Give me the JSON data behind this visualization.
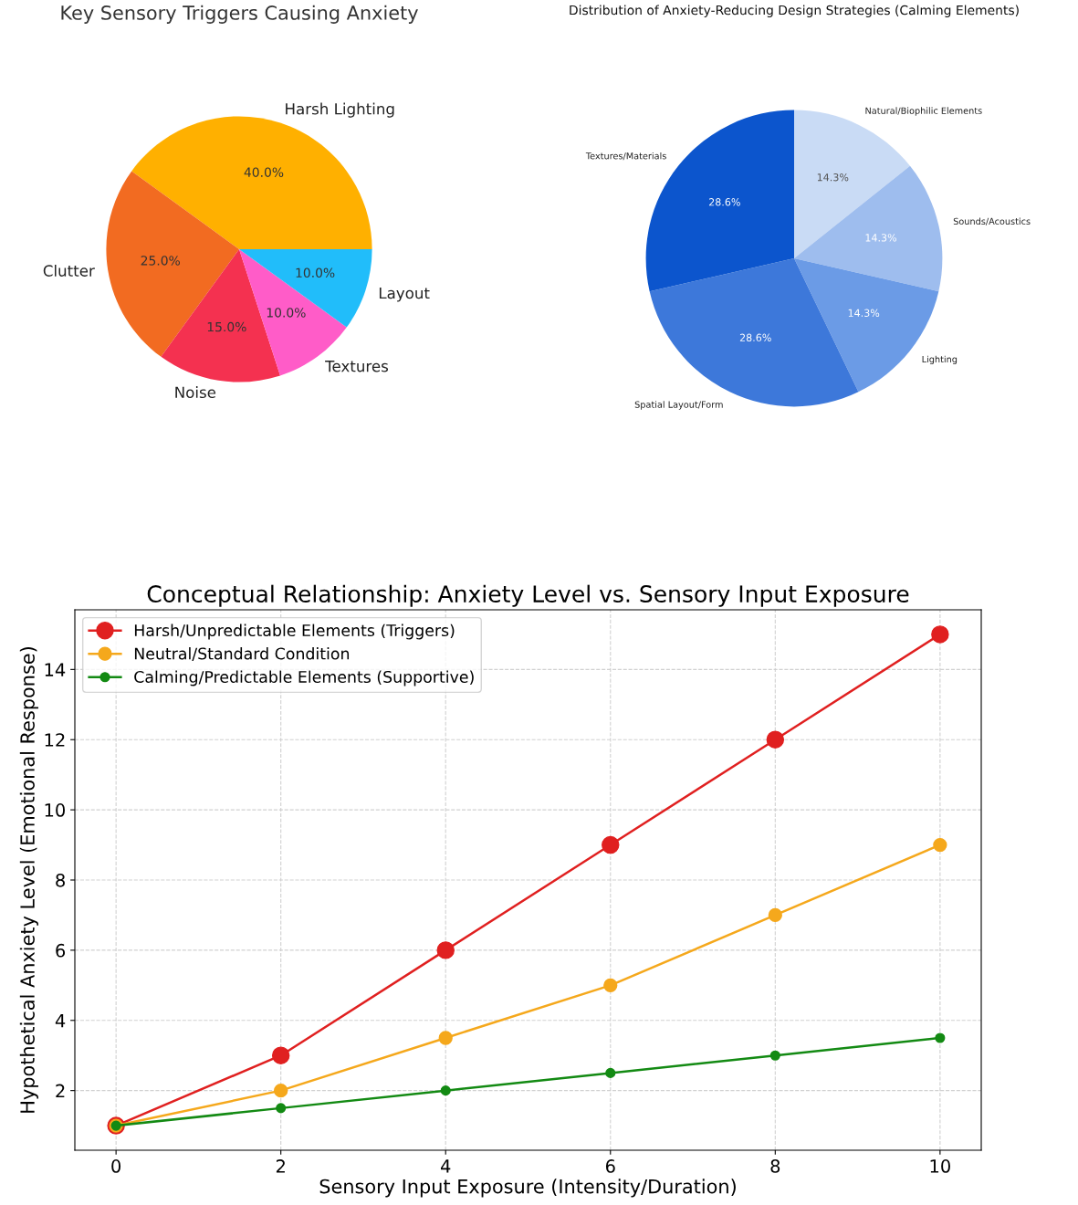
{
  "chart_data": [
    {
      "type": "pie",
      "title": "Key Sensory Triggers Causing Anxiety",
      "categories": [
        "Harsh Lighting",
        "Clutter",
        "Noise",
        "Textures",
        "Layout"
      ],
      "values": [
        40.0,
        25.0,
        15.0,
        10.0,
        10.0
      ],
      "value_labels": [
        "40.0%",
        "25.0%",
        "15.0%",
        "10.0%",
        "10.0%"
      ],
      "colors": [
        "#ffb000",
        "#f26b21",
        "#f43150",
        "#ff5cc8",
        "#21bdfa"
      ]
    },
    {
      "type": "pie",
      "title": "Distribution of Anxiety-Reducing Design Strategies (Calming Elements)",
      "categories": [
        "Natural/Biophilic Elements",
        "Sounds/Acoustics",
        "Lighting",
        "Spatial Layout/Form",
        "Textures/Materials"
      ],
      "values": [
        14.3,
        14.3,
        14.3,
        28.6,
        28.6
      ],
      "value_labels": [
        "14.3%",
        "14.3%",
        "14.3%",
        "28.6%",
        "28.6%"
      ],
      "colors": [
        "#c9dbf5",
        "#9ebdee",
        "#6b9be6",
        "#3d78da",
        "#0c55cd"
      ]
    },
    {
      "type": "line",
      "title": "Conceptual Relationship: Anxiety Level vs. Sensory Input Exposure",
      "xlabel": "Sensory Input Exposure (Intensity/Duration)",
      "ylabel": "Hypothetical Anxiety Level (Emotional Response)",
      "x": [
        0,
        2,
        4,
        6,
        8,
        10
      ],
      "xlim": [
        -0.5,
        10.5
      ],
      "xticks": [
        0,
        2,
        4,
        6,
        8,
        10
      ],
      "ylim": [
        0.3,
        15.7
      ],
      "yticks": [
        2,
        4,
        6,
        8,
        10,
        12,
        14
      ],
      "grid": true,
      "legend": "top left",
      "marker": "circle",
      "line_style": "solid",
      "series": [
        {
          "name": "Harsh/Unpredictable Elements (Triggers)",
          "color": "#e02020",
          "values": [
            1,
            3,
            6,
            9,
            12,
            15
          ]
        },
        {
          "name": "Neutral/Standard Condition",
          "color": "#f5a81c",
          "values": [
            1,
            2,
            3.5,
            5,
            7,
            9
          ]
        },
        {
          "name": "Calming/Predictable Elements (Supportive)",
          "color": "#138a13",
          "values": [
            1,
            1.5,
            2,
            2.5,
            3,
            3.5
          ]
        }
      ]
    }
  ]
}
